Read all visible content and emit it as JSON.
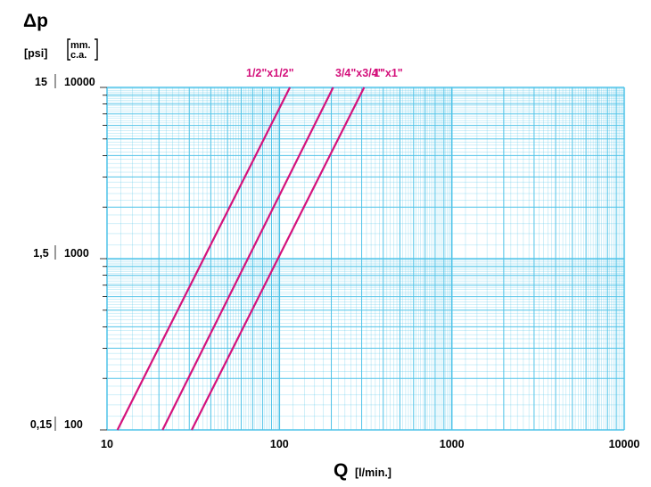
{
  "chart_data": {
    "type": "line",
    "title": "",
    "xscale": "log",
    "yscale": "log",
    "xlim": [
      10,
      10000
    ],
    "ylim": [
      100,
      10000
    ],
    "x_axis": {
      "symbol": "Q",
      "unit": "[l/min.]",
      "tick_labels": [
        "10",
        "100",
        "1000",
        "10000"
      ],
      "tick_values": [
        10,
        100,
        1000,
        10000
      ]
    },
    "y_axis": {
      "symbol": "Δp",
      "unit_psi": "[psi]",
      "unit_mm_line1": "mm.",
      "unit_mm_line2": "c.a.",
      "ticks": [
        {
          "psi": "15",
          "mmca": "10000",
          "value": 10000
        },
        {
          "psi": "1,5",
          "mmca": "1000",
          "value": 1000
        },
        {
          "psi": "0,15",
          "mmca": "100",
          "value": 100
        }
      ]
    },
    "grid": true,
    "grid_color": "#4fc3e8",
    "line_color": "#d4127c",
    "series": [
      {
        "name": "1/2\"x1/2\"",
        "points": [
          [
            11.5,
            100
          ],
          [
            115,
            10000
          ]
        ]
      },
      {
        "name": "3/4\"x3/4\"",
        "points": [
          [
            21,
            100
          ],
          [
            205,
            10000
          ]
        ]
      },
      {
        "name": "1\"x1\"",
        "points": [
          [
            31,
            100
          ],
          [
            310,
            10000
          ]
        ]
      }
    ]
  }
}
